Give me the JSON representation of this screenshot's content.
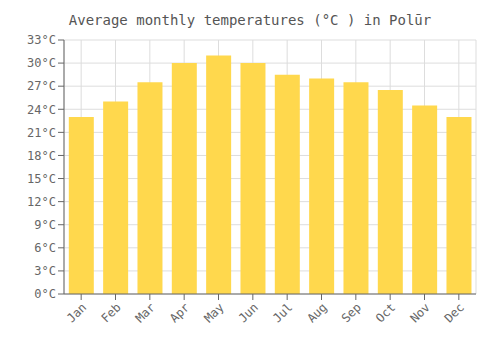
{
  "chart_data": {
    "type": "bar",
    "title": "Average monthly temperatures (°C ) in Polūr",
    "categories": [
      "Jan",
      "Feb",
      "Mar",
      "Apr",
      "May",
      "Jun",
      "Jul",
      "Aug",
      "Sep",
      "Oct",
      "Nov",
      "Dec"
    ],
    "values": [
      23.0,
      25.0,
      27.5,
      30.0,
      31.0,
      30.0,
      28.5,
      28.0,
      27.5,
      26.5,
      24.5,
      23.0
    ],
    "color": "#FFD84D",
    "ylim": [
      0,
      33
    ],
    "yticks": [
      {
        "value": 0,
        "label": "0°C"
      },
      {
        "value": 3,
        "label": "3°C"
      },
      {
        "value": 6,
        "label": "6°C"
      },
      {
        "value": 9,
        "label": "9°C"
      },
      {
        "value": 12,
        "label": "12°C"
      },
      {
        "value": 15,
        "label": "15°C"
      },
      {
        "value": 18,
        "label": "18°C"
      },
      {
        "value": 21,
        "label": "21°C"
      },
      {
        "value": 24,
        "label": "24°C"
      },
      {
        "value": 27,
        "label": "27°C"
      },
      {
        "value": 30,
        "label": "30°C"
      },
      {
        "value": 33,
        "label": "33°C"
      }
    ],
    "grid": true
  }
}
